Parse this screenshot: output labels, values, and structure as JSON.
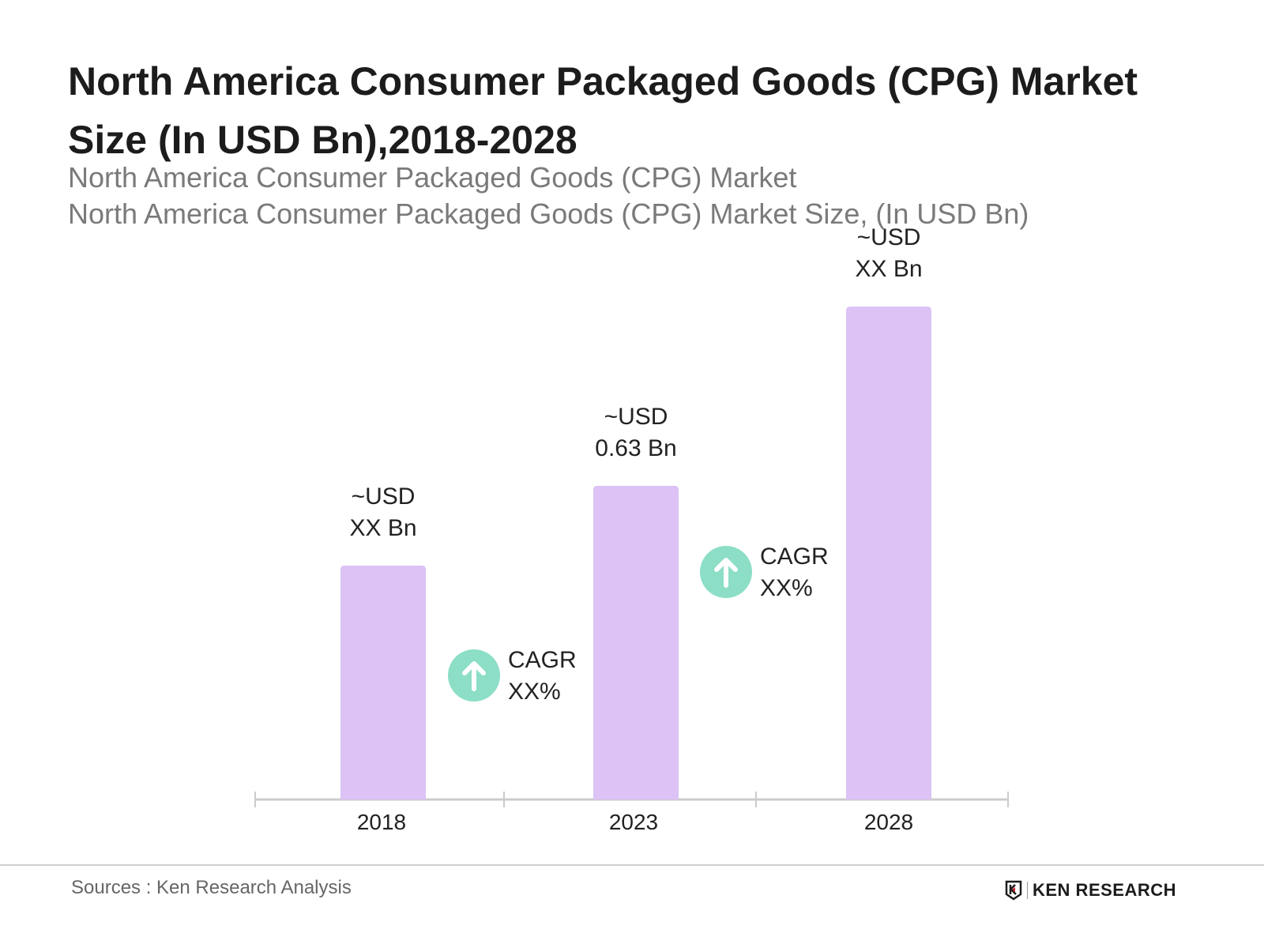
{
  "chart_data": {
    "type": "bar",
    "title": "North America Consumer Packaged Goods (CPG) Market Size (In USD Bn),2018-2028",
    "subtitle": "North America Consumer Packaged Goods (CPG) Market",
    "ylabel": "North America Consumer Packaged Goods (CPG) Market Size, (In USD Bn)",
    "categories": [
      "2018",
      "2023",
      "2028"
    ],
    "values": [
      0.47,
      0.63,
      0.99
    ],
    "data_labels": [
      [
        "~USD",
        "XX Bn"
      ],
      [
        "~USD",
        "0.63 Bn"
      ],
      [
        "~USD",
        "XX Bn"
      ]
    ],
    "annotations": [
      {
        "between": [
          "2018",
          "2023"
        ],
        "lines": [
          "CAGR",
          "XX%"
        ],
        "icon": "arrow-up-circle-icon"
      },
      {
        "between": [
          "2023",
          "2028"
        ],
        "lines": [
          "CAGR",
          "XX%"
        ],
        "icon": "arrow-up-circle-icon"
      }
    ],
    "grid": false,
    "legend": "none",
    "colors": {
      "bar": "#dcc2f5",
      "cagr_icon": "#8cdec6",
      "axis": "#cccccc"
    }
  },
  "footer": {
    "source": "Sources : Ken Research Analysis",
    "logo_text": "KEN RESEARCH"
  }
}
